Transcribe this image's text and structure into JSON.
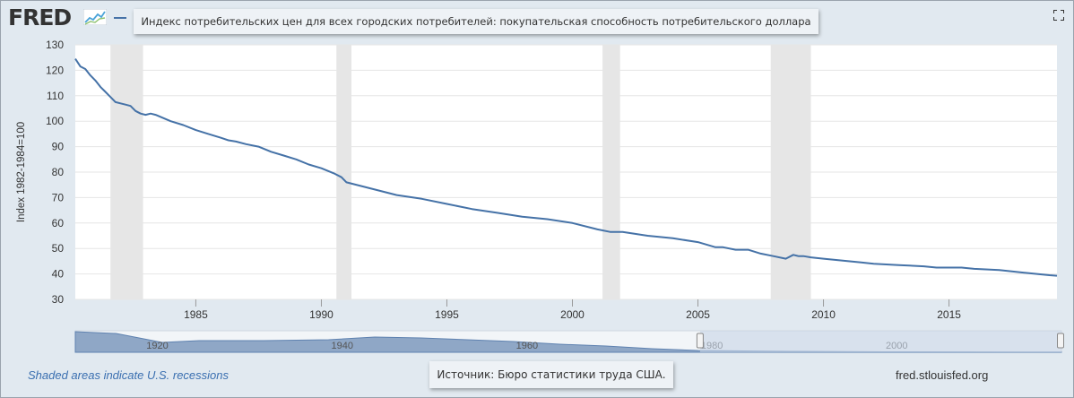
{
  "header": {
    "logo_text": "FRED",
    "logo_icon": "line-chart-icon",
    "series_title": "Индекс потребительских цен для всех городских потребителей: покупательская способность потребительского доллара",
    "fullscreen_icon": "expand-icon"
  },
  "footer": {
    "recession_note": "Shaded areas indicate U.S. recessions",
    "source": "Источник: Бюро статистики труда США.",
    "site": "fred.stlouisfed.org"
  },
  "colors": {
    "series": "#4572a7",
    "recession": "#e6e6e6",
    "background": "#e1e9f0",
    "navigator_fill": "#8fa7c6",
    "navigator_selection": "#c7d3e6"
  },
  "chart_data": {
    "type": "line",
    "ylabel": "Index 1982-1984=100",
    "xlim": [
      1980.2,
      2019.3
    ],
    "ylim": [
      30,
      130
    ],
    "grid": true,
    "y_ticks": [
      30,
      40,
      50,
      60,
      70,
      80,
      90,
      100,
      110,
      120,
      130
    ],
    "x_ticks": [
      1985,
      1990,
      1995,
      2000,
      2005,
      2010,
      2015
    ],
    "recessions": [
      [
        1981.6,
        1982.9
      ],
      [
        1990.6,
        1991.2
      ],
      [
        2001.2,
        2001.9
      ],
      [
        2007.9,
        2009.5
      ]
    ],
    "series": [
      {
        "x": [
          1980.2,
          1980.4,
          1980.6,
          1980.8,
          1981.0,
          1981.2,
          1981.4,
          1981.6,
          1981.8,
          1982.0,
          1982.2,
          1982.4,
          1982.6,
          1982.8,
          1983.0,
          1983.2,
          1983.4,
          1984.0,
          1984.5,
          1985.0,
          1985.5,
          1986.0,
          1986.3,
          1986.6,
          1987.0,
          1987.5,
          1988.0,
          1988.5,
          1989.0,
          1989.5,
          1990.0,
          1990.5,
          1990.8,
          1991.0,
          1992.0,
          1993.0,
          1994.0,
          1995.0,
          1996.0,
          1997.0,
          1998.0,
          1999.0,
          2000.0,
          2001.0,
          2001.5,
          2002.0,
          2003.0,
          2004.0,
          2005.0,
          2005.7,
          2006.0,
          2006.5,
          2007.0,
          2007.5,
          2008.0,
          2008.5,
          2008.8,
          2009.0,
          2009.2,
          2009.5,
          2010.0,
          2011.0,
          2011.5,
          2012.0,
          2013.0,
          2014.0,
          2014.5,
          2015.0,
          2015.5,
          2016.0,
          2017.0,
          2018.0,
          2018.5,
          2019.0,
          2019.3
        ],
        "y": [
          124.5,
          121.5,
          120.5,
          118.0,
          116.0,
          113.5,
          111.5,
          109.5,
          107.5,
          107.0,
          106.5,
          106.0,
          104.0,
          103.0,
          102.5,
          103.0,
          102.5,
          100.0,
          98.5,
          96.5,
          95.0,
          93.5,
          92.5,
          92.0,
          91.0,
          90.0,
          88.0,
          86.5,
          85.0,
          83.0,
          81.5,
          79.5,
          78.0,
          76.0,
          73.5,
          71.0,
          69.5,
          67.5,
          65.5,
          64.0,
          62.5,
          61.5,
          60.0,
          57.5,
          56.5,
          56.5,
          55.0,
          54.0,
          52.5,
          50.5,
          50.5,
          49.5,
          49.5,
          48.0,
          47.0,
          46.0,
          47.5,
          47.0,
          47.0,
          46.5,
          46.0,
          45.0,
          44.5,
          44.0,
          43.5,
          43.0,
          42.5,
          42.5,
          42.5,
          42.0,
          41.5,
          40.5,
          40.0,
          39.5,
          39.3
        ]
      }
    ],
    "navigator": {
      "x_ticks": [
        1920,
        1940,
        1960,
        1980,
        2000
      ],
      "selection": [
        1980.2,
        2019.3
      ]
    }
  }
}
